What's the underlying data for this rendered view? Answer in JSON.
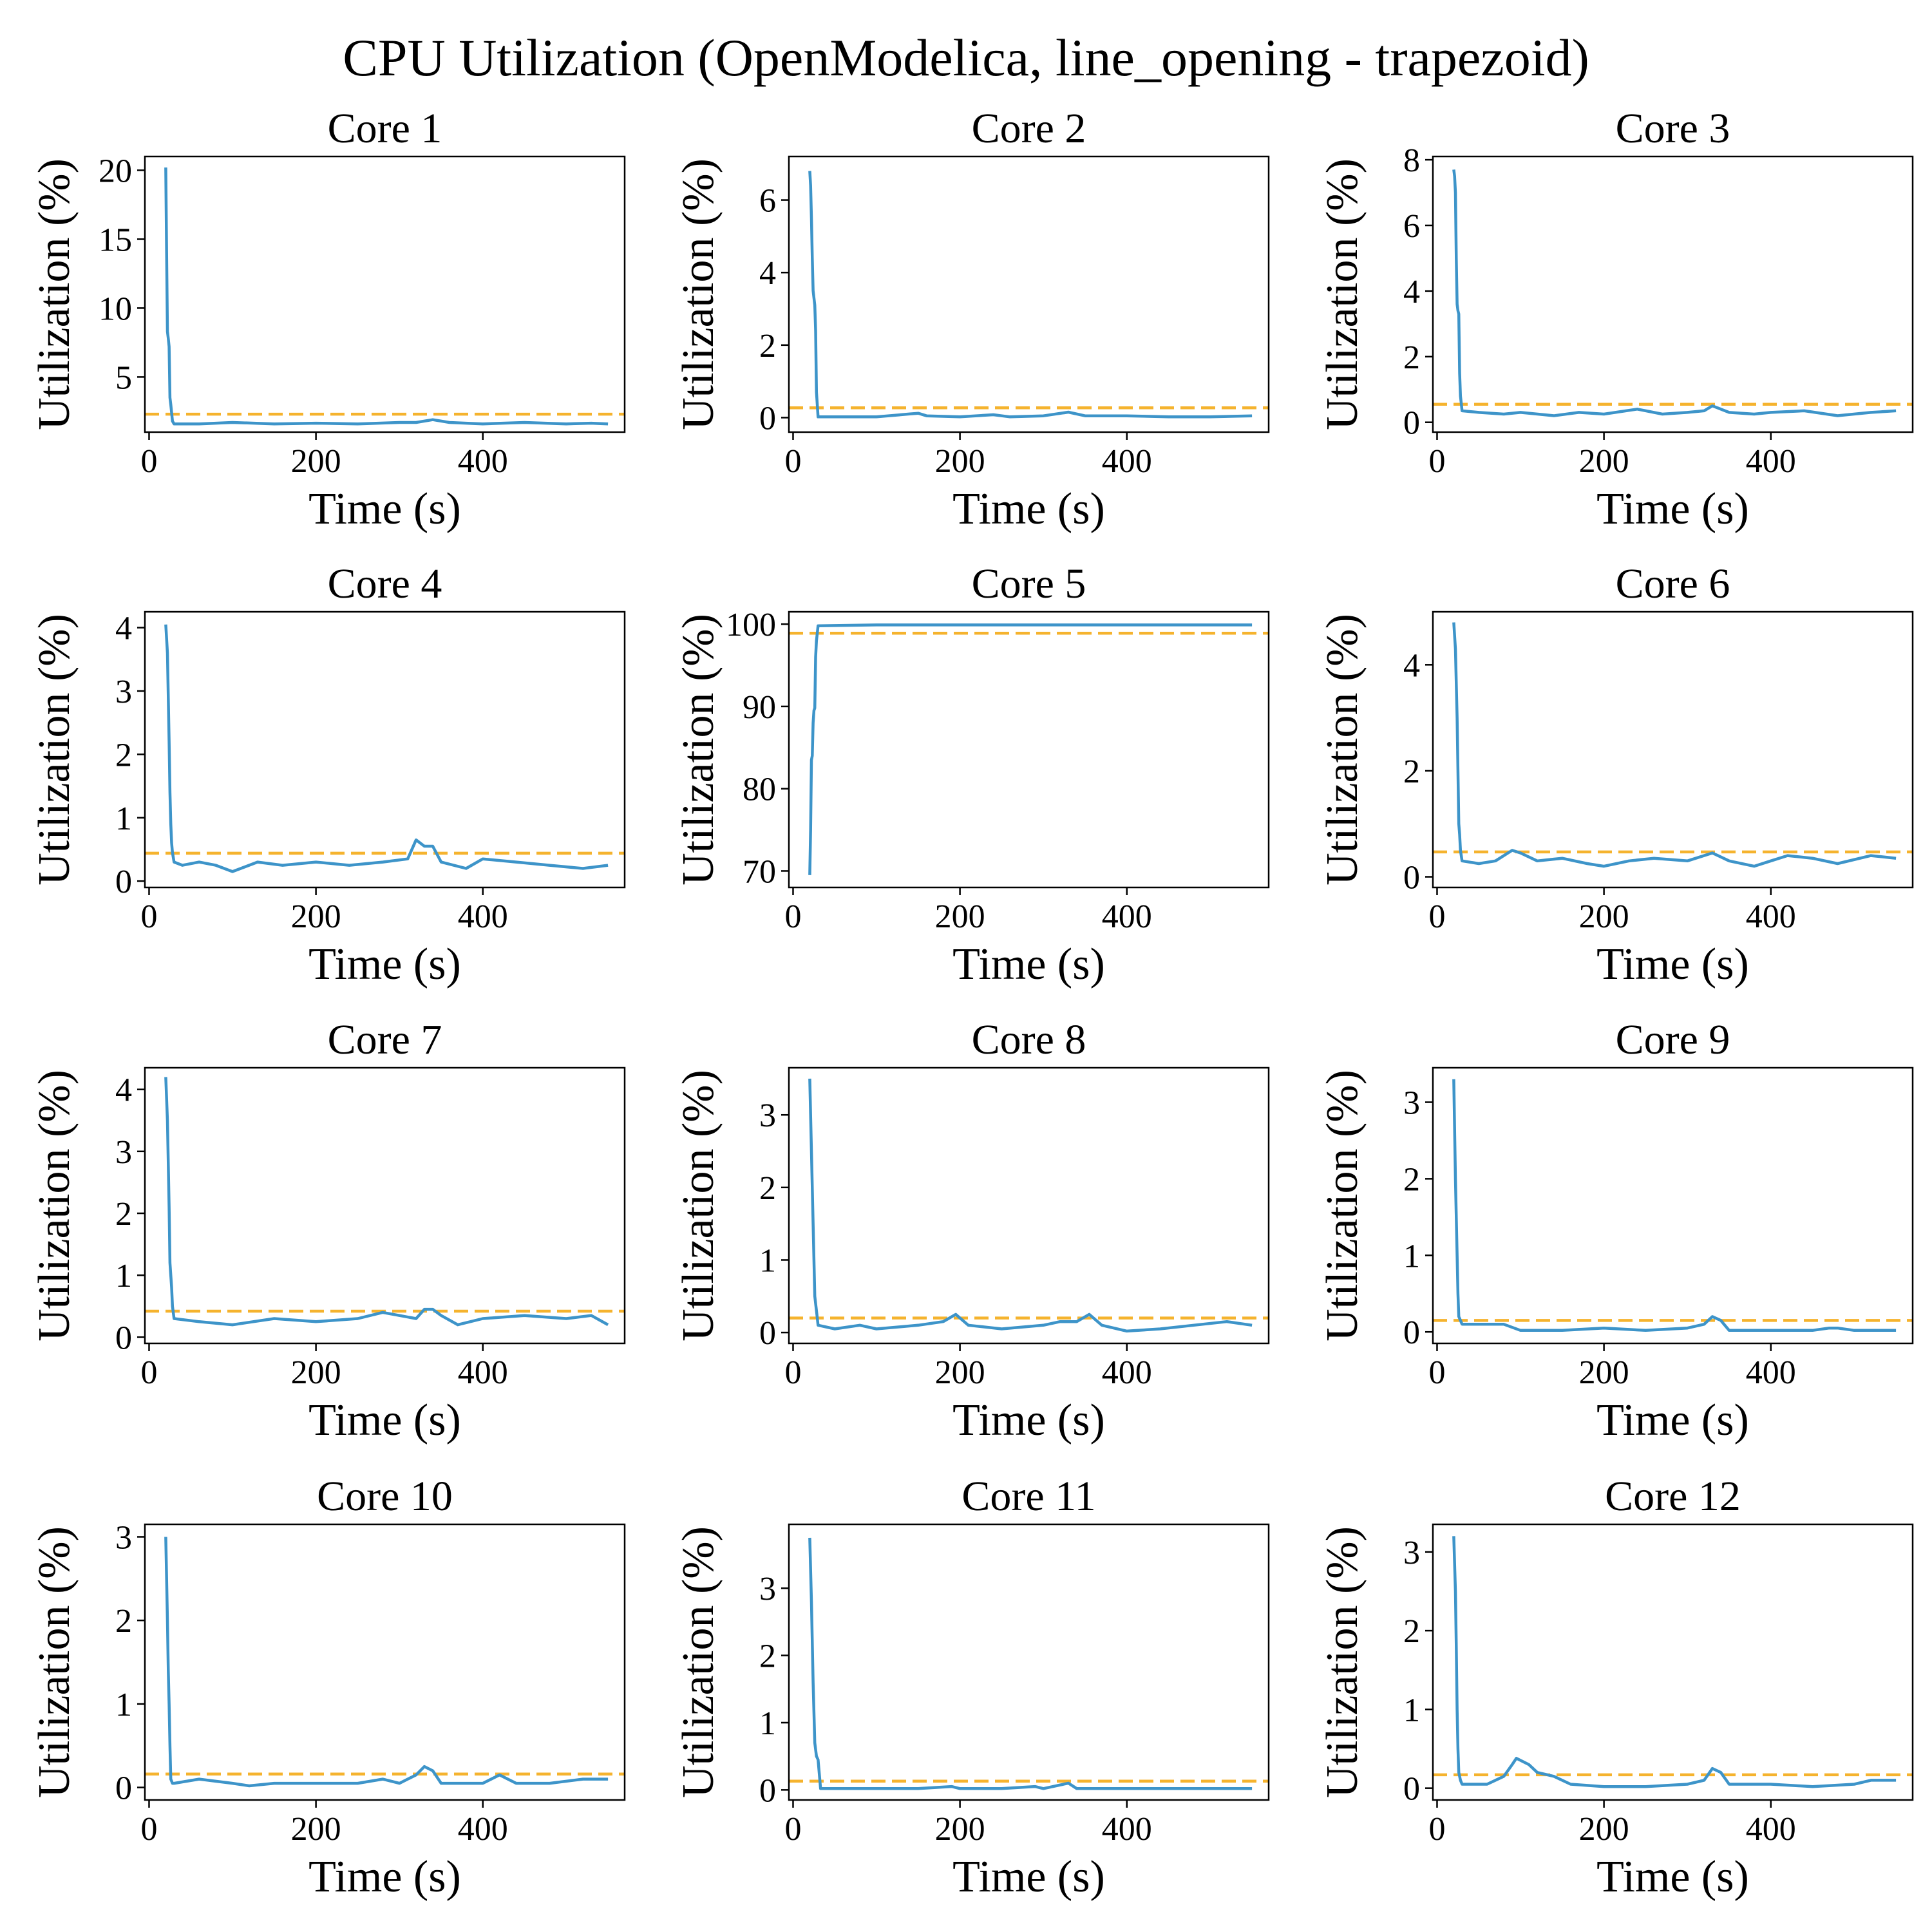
{
  "figure": {
    "title": "CPU Utilization (OpenModelica, line_opening - trapezoid)"
  },
  "colors": {
    "series": "#3d94c9",
    "mean": "#f5b32e",
    "axis": "#000000"
  },
  "chart_data": [
    {
      "type": "line",
      "title": "Core 1",
      "xlabel": "Time (s)",
      "ylabel": "Utilization (%)",
      "xlim": [
        -5,
        570
      ],
      "ylim": [
        1,
        21
      ],
      "xticks": [
        0,
        200,
        400
      ],
      "yticks": [
        5,
        10,
        15,
        20
      ],
      "mean": 2.3,
      "series": [
        {
          "x": [
            20,
            21,
            22,
            23,
            24,
            25,
            26,
            28,
            30,
            60,
            100,
            150,
            200,
            250,
            300,
            320,
            340,
            360,
            400,
            450,
            500,
            530,
            550
          ],
          "y": [
            20.2,
            14,
            8.3,
            7.8,
            7.2,
            3.5,
            3.0,
            1.8,
            1.6,
            1.6,
            1.7,
            1.6,
            1.65,
            1.6,
            1.7,
            1.7,
            1.9,
            1.7,
            1.6,
            1.7,
            1.6,
            1.65,
            1.6
          ]
        }
      ]
    },
    {
      "type": "line",
      "title": "Core 2",
      "xlabel": "Time (s)",
      "ylabel": "Utilization (%)",
      "xlim": [
        -5,
        570
      ],
      "ylim": [
        -0.4,
        7.2
      ],
      "xticks": [
        0,
        200,
        400
      ],
      "yticks": [
        0,
        2,
        4,
        6
      ],
      "mean": 0.27,
      "series": [
        {
          "x": [
            20,
            21,
            22,
            23,
            24,
            25,
            26,
            27,
            28,
            30,
            60,
            100,
            140,
            150,
            160,
            200,
            240,
            260,
            300,
            330,
            350,
            400,
            450,
            500,
            550
          ],
          "y": [
            6.8,
            6.4,
            5.5,
            4.4,
            3.5,
            3.3,
            3.1,
            2.4,
            0.7,
            0.02,
            0.02,
            0.02,
            0.1,
            0.12,
            0.05,
            0.02,
            0.08,
            0.02,
            0.05,
            0.15,
            0.05,
            0.05,
            0.02,
            0.02,
            0.05
          ]
        }
      ]
    },
    {
      "type": "line",
      "title": "Core 3",
      "xlabel": "Time (s)",
      "ylabel": "Utilization (%)",
      "xlim": [
        -5,
        570
      ],
      "ylim": [
        -0.3,
        8.1
      ],
      "xticks": [
        0,
        200,
        400
      ],
      "yticks": [
        0,
        2,
        4,
        6,
        8
      ],
      "mean": 0.55,
      "series": [
        {
          "x": [
            20,
            21,
            22,
            23,
            24,
            25,
            26,
            27,
            28,
            30,
            50,
            80,
            100,
            140,
            170,
            200,
            240,
            270,
            300,
            320,
            330,
            350,
            380,
            400,
            440,
            480,
            520,
            550
          ],
          "y": [
            7.7,
            7.5,
            7.0,
            5.0,
            3.6,
            3.4,
            3.3,
            1.5,
            0.8,
            0.35,
            0.3,
            0.25,
            0.3,
            0.2,
            0.3,
            0.25,
            0.4,
            0.25,
            0.3,
            0.35,
            0.5,
            0.3,
            0.25,
            0.3,
            0.35,
            0.2,
            0.3,
            0.35
          ]
        }
      ]
    },
    {
      "type": "line",
      "title": "Core 4",
      "xlabel": "Time (s)",
      "ylabel": "Utilization (%)",
      "xlim": [
        -5,
        570
      ],
      "ylim": [
        -0.1,
        4.25
      ],
      "xticks": [
        0,
        200,
        400
      ],
      "yticks": [
        0,
        1,
        2,
        3,
        4
      ],
      "mean": 0.44,
      "series": [
        {
          "x": [
            20,
            22,
            24,
            25,
            26,
            27,
            28,
            30,
            40,
            60,
            80,
            100,
            130,
            160,
            200,
            240,
            280,
            310,
            320,
            330,
            340,
            350,
            380,
            400,
            440,
            480,
            520,
            550
          ],
          "y": [
            4.05,
            3.6,
            2.2,
            1.4,
            0.9,
            0.6,
            0.45,
            0.3,
            0.25,
            0.3,
            0.25,
            0.15,
            0.3,
            0.25,
            0.3,
            0.25,
            0.3,
            0.35,
            0.65,
            0.55,
            0.55,
            0.3,
            0.2,
            0.35,
            0.3,
            0.25,
            0.2,
            0.25
          ]
        }
      ]
    },
    {
      "type": "line",
      "title": "Core 5",
      "xlabel": "Time (s)",
      "ylabel": "Utilization (%)",
      "xlim": [
        -5,
        570
      ],
      "ylim": [
        68,
        101.5
      ],
      "xticks": [
        0,
        200,
        400
      ],
      "yticks": [
        70,
        80,
        90,
        100
      ],
      "mean": 98.9,
      "series": [
        {
          "x": [
            20,
            21,
            22,
            23,
            24,
            25,
            26,
            27,
            28,
            30,
            100,
            200,
            300,
            400,
            500,
            550
          ],
          "y": [
            69.5,
            75,
            83.5,
            84,
            88,
            89.5,
            89.8,
            96,
            98,
            99.8,
            99.9,
            99.9,
            99.9,
            99.9,
            99.9,
            99.9
          ]
        }
      ]
    },
    {
      "type": "line",
      "title": "Core 6",
      "xlabel": "Time (s)",
      "ylabel": "Utilization (%)",
      "xlim": [
        -5,
        570
      ],
      "ylim": [
        -0.2,
        5.0
      ],
      "xticks": [
        0,
        200,
        400
      ],
      "yticks": [
        0,
        2,
        4
      ],
      "mean": 0.47,
      "series": [
        {
          "x": [
            20,
            22,
            24,
            25,
            26,
            27,
            28,
            30,
            50,
            70,
            90,
            100,
            120,
            150,
            180,
            200,
            230,
            260,
            300,
            330,
            350,
            380,
            400,
            420,
            450,
            480,
            520,
            550
          ],
          "y": [
            4.8,
            4.3,
            3.0,
            2.0,
            1.0,
            0.8,
            0.5,
            0.3,
            0.25,
            0.3,
            0.5,
            0.45,
            0.3,
            0.35,
            0.25,
            0.2,
            0.3,
            0.35,
            0.3,
            0.45,
            0.3,
            0.2,
            0.3,
            0.4,
            0.35,
            0.25,
            0.4,
            0.35
          ]
        }
      ]
    },
    {
      "type": "line",
      "title": "Core 7",
      "xlabel": "Time (s)",
      "ylabel": "Utilization (%)",
      "xlim": [
        -5,
        570
      ],
      "ylim": [
        -0.1,
        4.35
      ],
      "xticks": [
        0,
        200,
        400
      ],
      "yticks": [
        0,
        1,
        2,
        3,
        4
      ],
      "mean": 0.42,
      "series": [
        {
          "x": [
            20,
            22,
            24,
            25,
            26,
            27,
            28,
            30,
            60,
            100,
            150,
            200,
            250,
            280,
            300,
            320,
            330,
            340,
            350,
            370,
            400,
            450,
            500,
            530,
            550
          ],
          "y": [
            4.2,
            3.5,
            2.1,
            1.2,
            1.0,
            0.8,
            0.5,
            0.3,
            0.25,
            0.2,
            0.3,
            0.25,
            0.3,
            0.4,
            0.35,
            0.3,
            0.45,
            0.45,
            0.35,
            0.2,
            0.3,
            0.35,
            0.3,
            0.35,
            0.2
          ]
        }
      ]
    },
    {
      "type": "line",
      "title": "Core 8",
      "xlabel": "Time (s)",
      "ylabel": "Utilization (%)",
      "xlim": [
        -5,
        570
      ],
      "ylim": [
        -0.15,
        3.65
      ],
      "xticks": [
        0,
        200,
        400
      ],
      "yticks": [
        0,
        1,
        2,
        3
      ],
      "mean": 0.2,
      "series": [
        {
          "x": [
            20,
            22,
            24,
            26,
            27,
            28,
            30,
            50,
            80,
            100,
            150,
            180,
            195,
            210,
            250,
            300,
            320,
            340,
            355,
            370,
            400,
            440,
            480,
            520,
            550
          ],
          "y": [
            3.5,
            2.5,
            1.5,
            0.5,
            0.4,
            0.3,
            0.1,
            0.05,
            0.1,
            0.05,
            0.1,
            0.15,
            0.25,
            0.1,
            0.05,
            0.1,
            0.15,
            0.15,
            0.25,
            0.1,
            0.02,
            0.05,
            0.1,
            0.15,
            0.1
          ]
        }
      ]
    },
    {
      "type": "line",
      "title": "Core 9",
      "xlabel": "Time (s)",
      "ylabel": "Utilization (%)",
      "xlim": [
        -5,
        570
      ],
      "ylim": [
        -0.15,
        3.45
      ],
      "xticks": [
        0,
        200,
        400
      ],
      "yticks": [
        0,
        1,
        2,
        3
      ],
      "mean": 0.15,
      "series": [
        {
          "x": [
            20,
            22,
            24,
            25,
            26,
            28,
            30,
            50,
            80,
            100,
            150,
            200,
            250,
            300,
            320,
            330,
            340,
            350,
            400,
            450,
            470,
            480,
            500,
            550
          ],
          "y": [
            3.3,
            2.0,
            1.0,
            0.5,
            0.2,
            0.15,
            0.1,
            0.1,
            0.1,
            0.02,
            0.02,
            0.05,
            0.02,
            0.05,
            0.1,
            0.2,
            0.15,
            0.02,
            0.02,
            0.02,
            0.05,
            0.05,
            0.02,
            0.02
          ]
        }
      ]
    },
    {
      "type": "line",
      "title": "Core 10",
      "xlabel": "Time (s)",
      "ylabel": "Utilization (%)",
      "xlim": [
        -5,
        570
      ],
      "ylim": [
        -0.15,
        3.15
      ],
      "xticks": [
        0,
        200,
        400
      ],
      "yticks": [
        0,
        1,
        2,
        3
      ],
      "mean": 0.16,
      "series": [
        {
          "x": [
            20,
            22,
            23,
            24,
            25,
            26,
            28,
            30,
            60,
            100,
            120,
            150,
            200,
            250,
            280,
            300,
            320,
            330,
            340,
            350,
            400,
            420,
            440,
            480,
            520,
            550
          ],
          "y": [
            3.0,
            2.0,
            1.4,
            1.0,
            0.5,
            0.1,
            0.05,
            0.05,
            0.1,
            0.05,
            0.02,
            0.05,
            0.05,
            0.05,
            0.1,
            0.05,
            0.15,
            0.25,
            0.2,
            0.05,
            0.05,
            0.15,
            0.05,
            0.05,
            0.1,
            0.1
          ]
        }
      ]
    },
    {
      "type": "line",
      "title": "Core 11",
      "xlabel": "Time (s)",
      "ylabel": "Utilization (%)",
      "xlim": [
        -5,
        570
      ],
      "ylim": [
        -0.15,
        3.95
      ],
      "xticks": [
        0,
        200,
        400
      ],
      "yticks": [
        0,
        1,
        2,
        3
      ],
      "mean": 0.13,
      "series": [
        {
          "x": [
            20,
            22,
            24,
            26,
            27,
            28,
            30,
            33,
            60,
            100,
            150,
            190,
            200,
            250,
            290,
            300,
            330,
            340,
            400,
            450,
            500,
            550
          ],
          "y": [
            3.75,
            2.8,
            1.6,
            0.7,
            0.6,
            0.5,
            0.45,
            0.02,
            0.02,
            0.02,
            0.02,
            0.05,
            0.02,
            0.02,
            0.05,
            0.02,
            0.1,
            0.02,
            0.02,
            0.02,
            0.02,
            0.02
          ]
        }
      ]
    },
    {
      "type": "line",
      "title": "Core 12",
      "xlabel": "Time (s)",
      "ylabel": "Utilization (%)",
      "xlim": [
        -5,
        570
      ],
      "ylim": [
        -0.15,
        3.35
      ],
      "xticks": [
        0,
        200,
        400
      ],
      "yticks": [
        0,
        1,
        2,
        3
      ],
      "mean": 0.17,
      "series": [
        {
          "x": [
            20,
            22,
            23,
            24,
            25,
            26,
            28,
            30,
            60,
            80,
            90,
            95,
            110,
            120,
            140,
            160,
            200,
            250,
            300,
            320,
            330,
            340,
            350,
            400,
            450,
            500,
            520,
            550
          ],
          "y": [
            3.2,
            2.5,
            1.8,
            1.0,
            0.5,
            0.2,
            0.1,
            0.05,
            0.05,
            0.15,
            0.3,
            0.38,
            0.3,
            0.2,
            0.15,
            0.05,
            0.02,
            0.02,
            0.05,
            0.1,
            0.25,
            0.2,
            0.05,
            0.05,
            0.02,
            0.05,
            0.1,
            0.1
          ]
        }
      ]
    }
  ]
}
